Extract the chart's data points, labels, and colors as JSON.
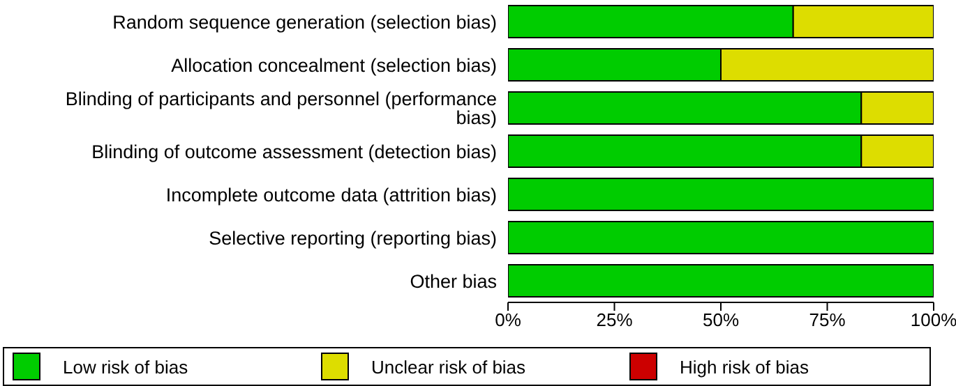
{
  "chart_data": {
    "type": "bar",
    "orientation": "horizontal",
    "stacked": true,
    "categories": [
      "Random sequence generation (selection bias)",
      "Allocation concealment (selection bias)",
      "Blinding of participants and personnel (performance bias)",
      "Blinding of outcome assessment (detection bias)",
      "Incomplete outcome data (attrition bias)",
      "Selective reporting (reporting bias)",
      "Other bias"
    ],
    "series": [
      {
        "name": "Low risk of bias",
        "color": "#00cc00",
        "values": [
          67,
          50,
          83,
          83,
          100,
          100,
          100
        ]
      },
      {
        "name": "Unclear risk of bias",
        "color": "#dddd00",
        "values": [
          33,
          50,
          17,
          17,
          0,
          0,
          0
        ]
      },
      {
        "name": "High risk of bias",
        "color": "#cc0000",
        "values": [
          0,
          0,
          0,
          0,
          0,
          0,
          0
        ]
      }
    ],
    "xlim": [
      0,
      100
    ],
    "xticks": [
      {
        "value": 0,
        "label": "0%"
      },
      {
        "value": 25,
        "label": "25%"
      },
      {
        "value": 50,
        "label": "50%"
      },
      {
        "value": 75,
        "label": "75%"
      },
      {
        "value": 100,
        "label": "100%"
      }
    ],
    "grid": false,
    "legend": "bottom"
  }
}
